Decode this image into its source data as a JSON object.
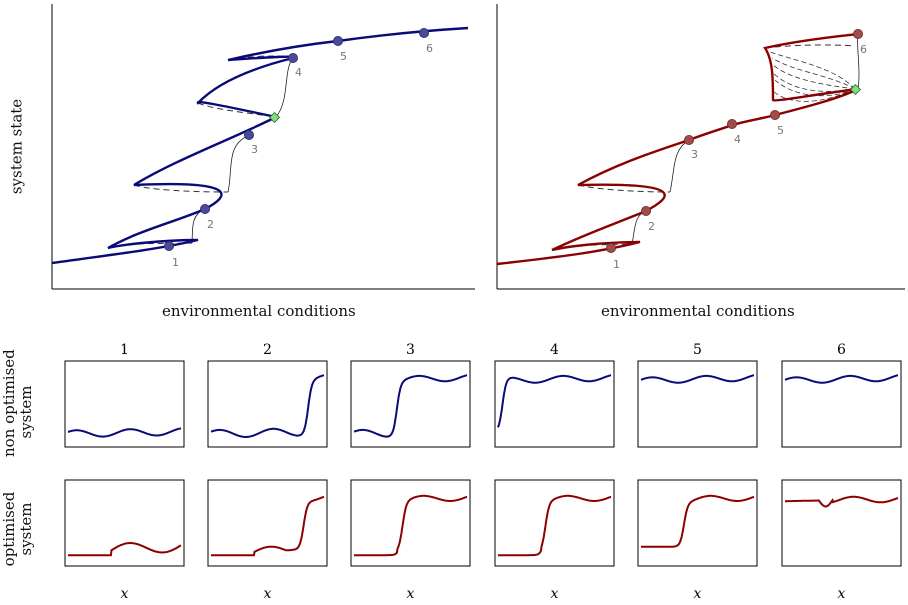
{
  "colors": {
    "non_optimised": "#0a0a78",
    "optimised": "#8b0000",
    "marker_green": "#7fdc7f"
  },
  "labels": {
    "ylabel": "system state",
    "xlabel_left": "environmental conditions",
    "xlabel_right": "environmental conditions",
    "row1_line1": "non optimised",
    "row1_line2": "system",
    "row2_line1": "optimised",
    "row2_line2": "system",
    "panel_x": "x",
    "columns": [
      "1",
      "2",
      "3",
      "4",
      "5",
      "6"
    ],
    "points": [
      "1",
      "2",
      "3",
      "4",
      "5",
      "6"
    ]
  },
  "chart_data": [
    {
      "type": "line",
      "title": "",
      "xlabel": "environmental conditions",
      "ylabel": "system state",
      "grid": false,
      "series": [
        {
          "name": "",
          "color": "#0a0a78"
        }
      ],
      "point_labels": [
        "1",
        "2",
        "3",
        "4",
        "5",
        "6"
      ]
    },
    {
      "type": "line",
      "title": "",
      "xlabel": "environmental conditions",
      "ylabel": "",
      "grid": false,
      "series": [
        {
          "name": "",
          "color": "#8b0000"
        }
      ],
      "point_labels": [
        "1",
        "2",
        "3",
        "4",
        "5",
        "6"
      ]
    },
    {
      "type": "line",
      "title": "",
      "xlabel": "x",
      "ylabel": "non optimised system",
      "panels": [
        "1",
        "2",
        "3",
        "4",
        "5",
        "6"
      ]
    },
    {
      "type": "line",
      "title": "",
      "xlabel": "x",
      "ylabel": "optimised system",
      "panels": [
        "1",
        "2",
        "3",
        "4",
        "5",
        "6"
      ]
    }
  ]
}
